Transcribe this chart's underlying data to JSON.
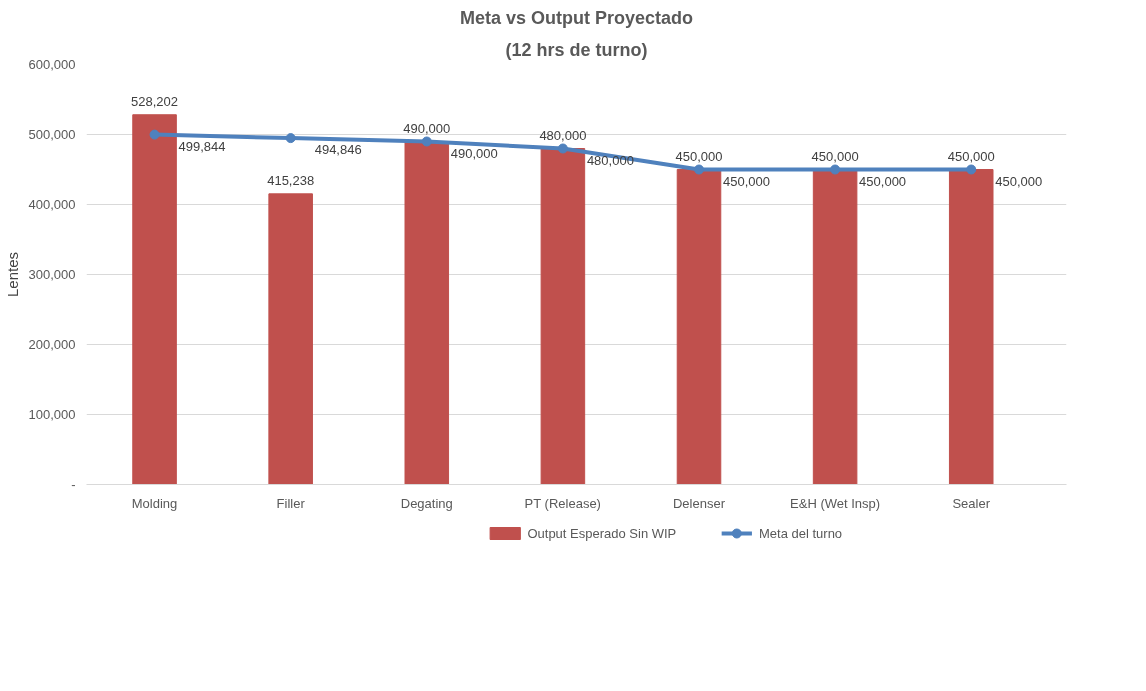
{
  "chart_data": {
    "type": "bar",
    "title": "Meta vs Output Proyectado",
    "subtitle": "(12 hrs de turno)",
    "ylabel": "Lentes",
    "categories": [
      "Molding",
      "Filler",
      "Degating",
      "PT (Release)",
      "Delenser",
      "E&H (Wet Insp)",
      "Sealer"
    ],
    "series": [
      {
        "name": "Output Esperado Sin WIP",
        "color": "#c0504d",
        "values": [
          528202,
          415238,
          490000,
          480000,
          450000,
          450000,
          450000
        ],
        "value_labels": [
          "528,202",
          "415,238",
          "490,000",
          "480,000",
          "450,000",
          "450,000",
          "450,000"
        ]
      },
      {
        "name": "Meta del turno",
        "type": "line",
        "color": "#4f81bd",
        "marker": "circle",
        "values": [
          499844,
          494846,
          490000,
          480000,
          450000,
          450000,
          450000
        ],
        "value_labels": [
          "499,844",
          "494,846",
          "490,000",
          "480,000",
          "450,000",
          "450,000",
          "450,000"
        ]
      }
    ],
    "ylim": [
      0,
      600000
    ],
    "yticks": [
      {
        "value": 0,
        "label": "-"
      },
      {
        "value": 100000,
        "label": "100,000"
      },
      {
        "value": 200000,
        "label": "200,000"
      },
      {
        "value": 300000,
        "label": "300,000"
      },
      {
        "value": 400000,
        "label": "400,000"
      },
      {
        "value": 500000,
        "label": "500,000"
      },
      {
        "value": 600000,
        "label": "600,000"
      }
    ],
    "grid": "y",
    "legend": "bottom",
    "data_labels": true
  }
}
